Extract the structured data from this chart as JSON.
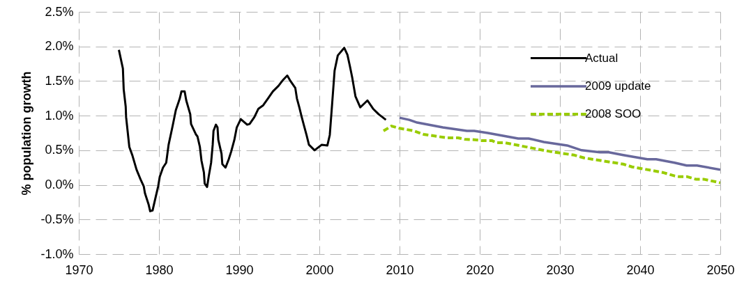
{
  "chart_data": {
    "type": "line",
    "ylabel": "% population growth",
    "xlim": [
      1970,
      2050
    ],
    "xticks": [
      1970,
      1980,
      1990,
      2000,
      2010,
      2020,
      2030,
      2040,
      2050
    ],
    "ylim": [
      -1,
      2.5
    ],
    "yticks": [
      {
        "value": -1,
        "label": "-1.0%"
      },
      {
        "value": -0.5,
        "label": "-0.5%"
      },
      {
        "value": 0,
        "label": "0.0%"
      },
      {
        "value": 0.5,
        "label": "0.5%"
      },
      {
        "value": 1,
        "label": "1.0%"
      },
      {
        "value": 1.5,
        "label": "1.5%"
      },
      {
        "value": 2,
        "label": "2.0%"
      },
      {
        "value": 2.5,
        "label": "2.5%"
      }
    ],
    "grid": true,
    "legend": "top right",
    "marker": "none",
    "series": [
      {
        "name": "Actual",
        "color": "#000000",
        "line_style": "solid",
        "x": [
          1975.0,
          1975.5,
          1975.6,
          1975.85,
          1975.9,
          1976.3,
          1976.7,
          1977.2,
          1977.7,
          1978.1,
          1978.25,
          1978.7,
          1978.9,
          1979.2,
          1979.5,
          1979.9,
          1980.1,
          1980.5,
          1980.9,
          1981.2,
          1981.7,
          1982.1,
          1982.6,
          1982.8,
          1983.2,
          1983.4,
          1983.9,
          1984.0,
          1984.6,
          1984.8,
          1985.1,
          1985.3,
          1985.6,
          1985.7,
          1986.0,
          1986.2,
          1986.5,
          1986.7,
          1986.8,
          1987.1,
          1987.3,
          1987.4,
          1987.8,
          1987.9,
          1988.3,
          1988.7,
          1989.0,
          1989.4,
          1989.7,
          1990.2,
          1991.0,
          1991.3,
          1991.9,
          1992.4,
          1993.0,
          1993.6,
          1994.2,
          1994.9,
          1995.5,
          1996.0,
          1996.4,
          1997.0,
          1997.2,
          1997.5,
          1997.8,
          1998.1,
          1998.4,
          1998.7,
          1999.4,
          2000.3,
          2001.0,
          2001.3,
          2001.6,
          2001.9,
          2002.3,
          2003.1,
          2003.5,
          2003.8,
          2004.1,
          2004.5,
          2005.1,
          2006.0,
          2006.7,
          2007.4,
          2008.3
        ],
        "values": [
          1.95,
          1.68,
          1.38,
          1.13,
          0.98,
          0.55,
          0.42,
          0.22,
          0.08,
          -0.02,
          -0.12,
          -0.28,
          -0.38,
          -0.37,
          -0.22,
          -0.02,
          0.12,
          0.25,
          0.32,
          0.58,
          0.85,
          1.08,
          1.25,
          1.35,
          1.35,
          1.22,
          1.02,
          0.88,
          0.73,
          0.7,
          0.55,
          0.35,
          0.18,
          0.02,
          -0.03,
          0.12,
          0.32,
          0.58,
          0.78,
          0.87,
          0.83,
          0.65,
          0.45,
          0.3,
          0.25,
          0.37,
          0.48,
          0.65,
          0.83,
          0.95,
          0.87,
          0.88,
          0.98,
          1.1,
          1.15,
          1.25,
          1.35,
          1.43,
          1.52,
          1.58,
          1.5,
          1.4,
          1.25,
          1.12,
          0.98,
          0.85,
          0.72,
          0.58,
          0.5,
          0.58,
          0.57,
          0.72,
          1.18,
          1.65,
          1.87,
          1.98,
          1.88,
          1.72,
          1.55,
          1.28,
          1.12,
          1.22,
          1.1,
          1.02,
          0.94
        ]
      },
      {
        "name": "2009 update",
        "color": "#68689c",
        "line_style": "solid",
        "x": [
          2010.0,
          2011.2,
          2012.2,
          2015.4,
          2018.4,
          2019.3,
          2021.0,
          2024.8,
          2026.1,
          2028.0,
          2030.9,
          2032.7,
          2035.0,
          2036.1,
          2037.9,
          2040.9,
          2042.0,
          2044.3,
          2045.8,
          2047.1,
          2050.0
        ],
        "values": [
          0.97,
          0.94,
          0.9,
          0.83,
          0.78,
          0.78,
          0.75,
          0.67,
          0.67,
          0.62,
          0.57,
          0.5,
          0.47,
          0.47,
          0.43,
          0.37,
          0.37,
          0.32,
          0.28,
          0.28,
          0.22
        ]
      },
      {
        "name": "2008 SOO",
        "color": "#99cc00",
        "line_style": "dashed",
        "x": [
          2008.0,
          2009.0,
          2009.9,
          2011.8,
          2013.0,
          2015.9,
          2017.3,
          2018.1,
          2019.6,
          2020.2,
          2021.5,
          2022.1,
          2023.1,
          2026.6,
          2028.9,
          2031.8,
          2033.0,
          2037.9,
          2039.0,
          2042.8,
          2044.3,
          2044.8,
          2045.8,
          2047.0,
          2048.0,
          2050.0
        ],
        "values": [
          0.78,
          0.85,
          0.82,
          0.78,
          0.73,
          0.68,
          0.68,
          0.66,
          0.65,
          0.64,
          0.64,
          0.61,
          0.61,
          0.53,
          0.48,
          0.43,
          0.39,
          0.3,
          0.26,
          0.18,
          0.13,
          0.12,
          0.12,
          0.08,
          0.08,
          0.03
        ]
      }
    ]
  }
}
